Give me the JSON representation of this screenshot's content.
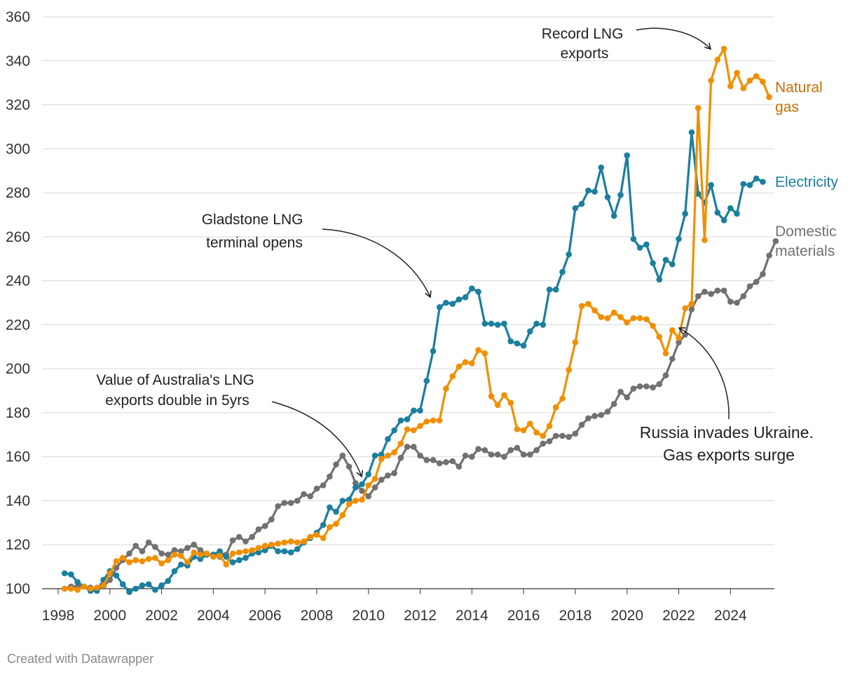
{
  "chart_data": {
    "type": "line",
    "title": "",
    "xlabel": "",
    "ylabel": "",
    "xlim": [
      1998,
      2025.7
    ],
    "ylim": [
      100,
      360
    ],
    "y_ticks": [
      100,
      120,
      140,
      160,
      180,
      200,
      220,
      240,
      260,
      280,
      300,
      320,
      340,
      360
    ],
    "x_ticks": [
      1998,
      2000,
      2002,
      2004,
      2006,
      2008,
      2010,
      2012,
      2014,
      2016,
      2018,
      2020,
      2022,
      2024
    ],
    "y_tick_labels": [
      "100",
      "120",
      "140",
      "160",
      "180",
      "200",
      "220",
      "240",
      "260",
      "280",
      "300",
      "320",
      "340",
      "360"
    ],
    "x_tick_labels": [
      "1998",
      "2000",
      "2002",
      "2004",
      "2006",
      "2008",
      "2010",
      "2012",
      "2014",
      "2016",
      "2018",
      "2020",
      "2022",
      "2024"
    ],
    "grid": true,
    "x_start": 1998.25,
    "x_step": 0.25,
    "series": [
      {
        "name": "Electricity",
        "label_lines": [
          "Electricity"
        ],
        "color": "#1b7f9e",
        "values": [
          107,
          106.5,
          103,
          101,
          99,
          99,
          104,
          108,
          106,
          102,
          98.5,
          100,
          101.5,
          102,
          99.5,
          101.5,
          103.5,
          108,
          111,
          110.5,
          114.5,
          113.5,
          115.5,
          115.5,
          117,
          114.5,
          112,
          113,
          114,
          116,
          116.5,
          117.5,
          119.5,
          117,
          117,
          116.5,
          118,
          121,
          123,
          125.5,
          129,
          137,
          135,
          140,
          140.5,
          146,
          147.5,
          152,
          160.5,
          161,
          168,
          172,
          176.5,
          177,
          181,
          181,
          194.5,
          208,
          228,
          230,
          229.5,
          231.5,
          232.5,
          236.5,
          235,
          220.5,
          220.5,
          220,
          220.5,
          212.5,
          211.5,
          210.5,
          217,
          220.5,
          220,
          236,
          236,
          244,
          252,
          273,
          275,
          281,
          280.5,
          291.5,
          278,
          269.5,
          279,
          297,
          259,
          255,
          256.5,
          248,
          240.5,
          249.5,
          247.5,
          259,
          270.5,
          307.5,
          279.5,
          275.5,
          283.5,
          271,
          267.5,
          273,
          270.5,
          284,
          283.5,
          286.5,
          285
        ]
      },
      {
        "name": "Natural gas",
        "label_lines": [
          "Natural",
          "gas"
        ],
        "color": "#f18f01",
        "label_color": "#c96d00",
        "values": [
          100,
          100,
          99.5,
          101,
          100,
          100.5,
          101.5,
          107,
          112.5,
          114,
          112,
          113,
          112.5,
          113.5,
          114,
          111.5,
          113,
          115.5,
          115,
          112,
          116.5,
          115.5,
          116,
          114.5,
          115,
          111,
          116,
          116.5,
          117,
          117.5,
          118.5,
          119.5,
          120,
          120.5,
          121,
          121.5,
          121,
          121.5,
          123.5,
          124.5,
          123,
          128,
          129.5,
          133.5,
          138.5,
          140,
          140.5,
          147,
          150,
          159,
          160.5,
          162,
          166,
          172.5,
          172,
          174,
          176,
          176.5,
          176.5,
          191,
          196.5,
          201,
          203,
          202.5,
          208.5,
          207,
          187.5,
          183.5,
          188,
          184.5,
          172.5,
          172,
          175,
          171,
          169.5,
          174,
          182.5,
          186.5,
          199.5,
          212,
          228.5,
          229.5,
          226.5,
          223.5,
          223,
          225.5,
          223.5,
          221,
          223,
          223,
          222.5,
          219.5,
          214.5,
          207,
          217.5,
          214,
          227.5,
          229.5,
          318.5,
          258.5,
          331,
          340.5,
          345.5,
          328.5,
          334.5,
          327.5,
          331,
          333,
          330.5,
          323.5
        ]
      },
      {
        "name": "Domestic materials",
        "label_lines": [
          "Domestic",
          "materials"
        ],
        "color": "#717171",
        "values": [
          100,
          101,
          101,
          101,
          100.5,
          100,
          101,
          104,
          109.5,
          113,
          116,
          119.5,
          117,
          121,
          119,
          116,
          115.5,
          117.5,
          117,
          118.5,
          120,
          117.5,
          115.5,
          115.5,
          114.5,
          115.5,
          122,
          123.5,
          121.5,
          123.5,
          127,
          128.5,
          131.5,
          137.5,
          139,
          139,
          140,
          143,
          142,
          145.5,
          147,
          151,
          156.5,
          160.5,
          155.5,
          148,
          144.5,
          142,
          146,
          149.5,
          151.5,
          152.5,
          159.5,
          164.5,
          164.5,
          160.5,
          158.5,
          158.5,
          157,
          157.5,
          158,
          155.5,
          160.5,
          160,
          163.5,
          163,
          161,
          161,
          160,
          163,
          164,
          161,
          161,
          163,
          166,
          167,
          169.5,
          169.5,
          169,
          170.5,
          174.5,
          177.5,
          178.5,
          179,
          180.5,
          184,
          189.5,
          187,
          191,
          192,
          192,
          191.5,
          193,
          197,
          204.5,
          212,
          215.5,
          227,
          233,
          235,
          234,
          235.5,
          235.5,
          230.5,
          230,
          233,
          237.5,
          239.5,
          243,
          251.5,
          258
        ]
      }
    ],
    "annotations": [
      {
        "lines": [
          "Value of Australia's LNG",
          "exports double in 5yrs"
        ]
      },
      {
        "lines": [
          "Gladstone LNG",
          "terminal opens"
        ]
      },
      {
        "lines": [
          "Record LNG",
          "exports"
        ]
      },
      {
        "lines": [
          "Russia invades Ukraine.",
          "Gas exports surge"
        ]
      }
    ]
  },
  "footer": {
    "credit": "Created with Datawrapper"
  }
}
